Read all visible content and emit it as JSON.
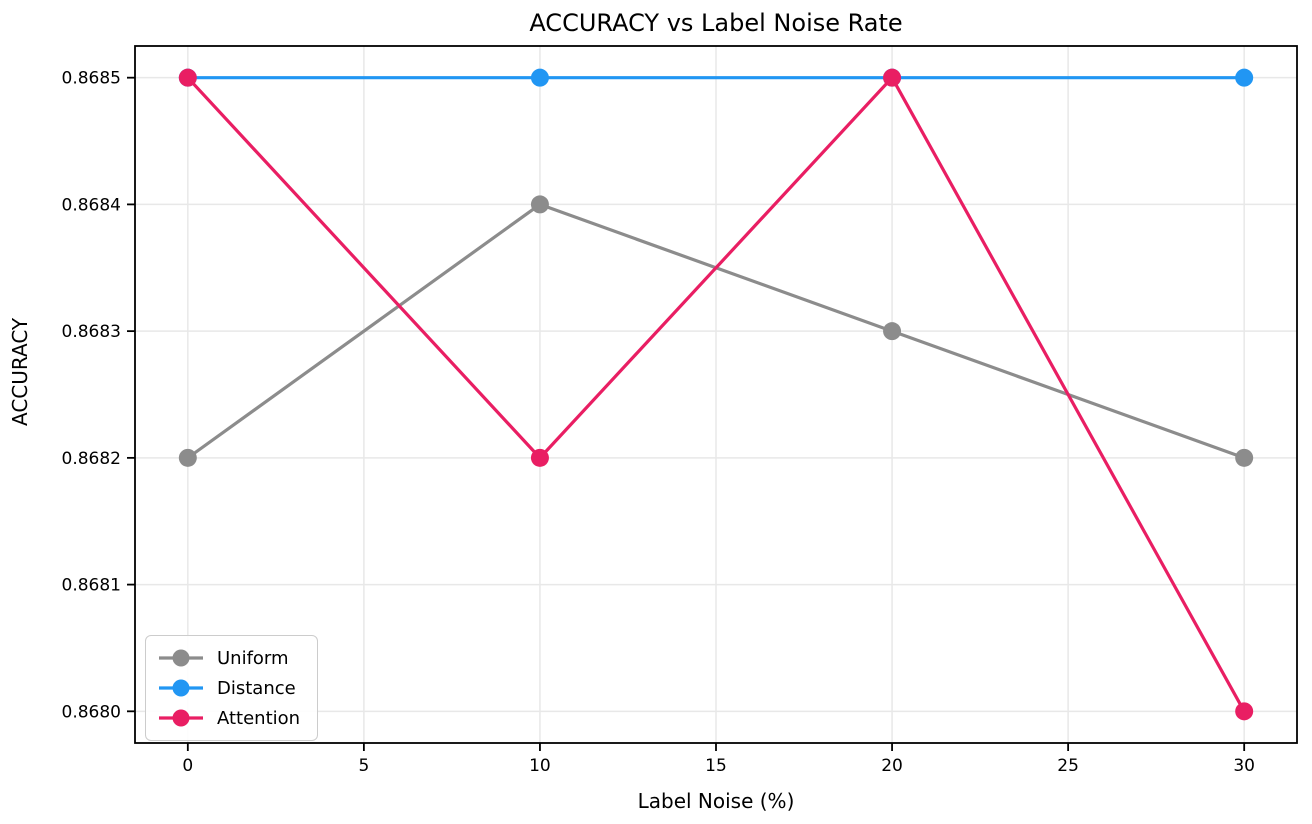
{
  "chart_data": {
    "type": "line",
    "title": "ACCURACY vs Label Noise Rate",
    "xlabel": "Label Noise (%)",
    "ylabel": "ACCURACY",
    "x": [
      0,
      10,
      20,
      30
    ],
    "series": [
      {
        "name": "Uniform",
        "color": "#8c8c8c",
        "values": [
          0.8682,
          0.8684,
          0.8683,
          0.8682
        ]
      },
      {
        "name": "Distance",
        "color": "#2196f3",
        "values": [
          0.8685,
          0.8685,
          0.8685,
          0.8685
        ]
      },
      {
        "name": "Attention",
        "color": "#e91e63",
        "values": [
          0.8685,
          0.8682,
          0.8685,
          0.868
        ]
      }
    ],
    "xlim": [
      -1.5,
      31.5
    ],
    "ylim": [
      0.867975,
      0.868525
    ],
    "xticks": {
      "values": [
        0,
        5,
        10,
        15,
        20,
        25,
        30
      ],
      "labels": [
        "0",
        "5",
        "10",
        "15",
        "20",
        "25",
        "30"
      ]
    },
    "yticks": {
      "values": [
        0.868,
        0.8681,
        0.8682,
        0.8683,
        0.8684,
        0.8685
      ],
      "labels": [
        "0.8680",
        "0.8681",
        "0.8682",
        "0.8683",
        "0.8684",
        "0.8685"
      ]
    },
    "grid": true,
    "legend": {
      "position": "lower-left",
      "items": [
        "Uniform",
        "Distance",
        "Attention"
      ]
    },
    "style": {
      "grid_color": "#e8e8e8",
      "spine_color": "#000000",
      "background": "#ffffff",
      "line_width": 3.2,
      "marker_radius": 9
    }
  }
}
